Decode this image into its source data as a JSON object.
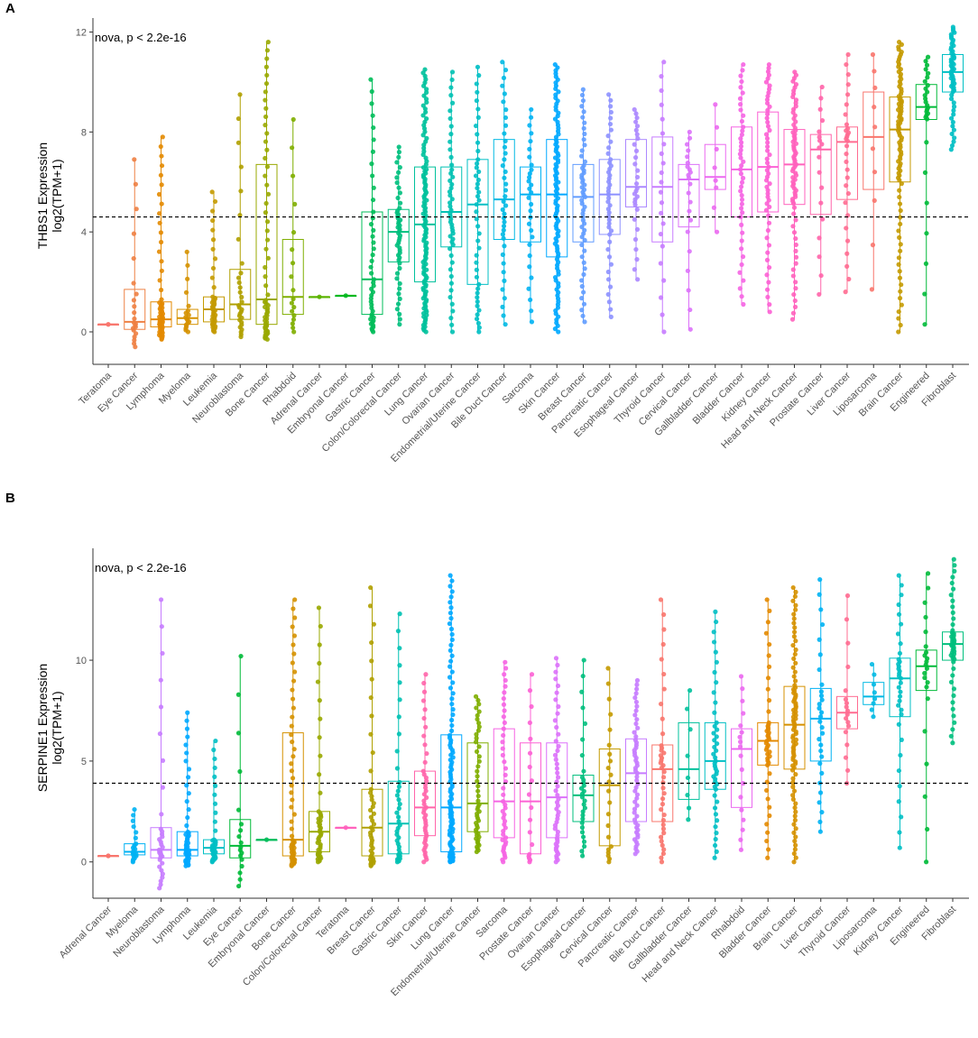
{
  "figure": {
    "panel_a_letter": "A",
    "panel_b_letter": "B"
  },
  "chart_data": [
    {
      "type": "box",
      "panel": "A",
      "annotation": "nova, p < 2.2e-16",
      "ylabel_line1": "THBS1 Expression",
      "ylabel_line2": "log2(TPM+1)",
      "yticks": [
        0,
        4,
        8,
        12
      ],
      "ylim": [
        -1.3,
        12.2
      ],
      "reference_line": 4.6,
      "grid": false,
      "categories": [
        "Teratoma",
        "Eye Cancer",
        "Lymphoma",
        "Myeloma",
        "Leukemia",
        "Neuroblastoma",
        "Bone Cancer",
        "Rhabdoid",
        "Adrenal Cancer",
        "Embryonal Cancer",
        "Gastric Cancer",
        "Colon/Colorectal Cancer",
        "Lung Cancer",
        "Ovarian Cancer",
        "Endometrial/Uterine Cancer",
        "Bile Duct Cancer",
        "Sarcoma",
        "Skin Cancer",
        "Breast Cancer",
        "Pancreatic Cancer",
        "Esophageal Cancer",
        "Thyroid Cancer",
        "Cervical Cancer",
        "Gallbladder Cancer",
        "Bladder Cancer",
        "Kidney Cancer",
        "Head and Neck Cancer",
        "Prostate Cancer",
        "Liver Cancer",
        "Liposarcoma",
        "Brain Cancer",
        "Engineered",
        "Fibroblast"
      ],
      "colors": [
        "#F8766D",
        "#EE8043",
        "#E38900",
        "#D59100",
        "#C49A00",
        "#B0A000",
        "#99A800",
        "#7FAE00",
        "#5BB300",
        "#00B81F",
        "#00BC59",
        "#00BF7D",
        "#00C19C",
        "#00C1B3",
        "#00BFC4",
        "#00B9E3",
        "#00B2F3",
        "#00A8FF",
        "#619CFF",
        "#8D91FF",
        "#AC88FF",
        "#C77CFF",
        "#DC71FA",
        "#EB69F0",
        "#F564E3",
        "#FC61D4",
        "#FF62BC",
        "#FF65AA",
        "#FF6C91",
        "#F8766D",
        "#C49A00",
        "#00BA38",
        "#00BFC4"
      ],
      "stats": [
        {
          "min": 0.3,
          "q1": 0.3,
          "median": 0.3,
          "q3": 0.3,
          "max": 0.3,
          "n": 2
        },
        {
          "min": -0.6,
          "q1": 0.1,
          "median": 0.4,
          "q3": 1.7,
          "max": 6.9,
          "n": 22
        },
        {
          "min": -0.3,
          "q1": 0.2,
          "median": 0.5,
          "q3": 1.2,
          "max": 7.8,
          "n": 70
        },
        {
          "min": 0.0,
          "q1": 0.3,
          "median": 0.55,
          "q3": 0.9,
          "max": 3.2,
          "n": 18
        },
        {
          "min": 0.0,
          "q1": 0.4,
          "median": 0.9,
          "q3": 1.4,
          "max": 5.6,
          "n": 45
        },
        {
          "min": -0.2,
          "q1": 0.5,
          "median": 1.1,
          "q3": 2.5,
          "max": 9.5,
          "n": 30
        },
        {
          "min": -0.3,
          "q1": 0.3,
          "median": 1.3,
          "q3": 6.7,
          "max": 11.6,
          "n": 60
        },
        {
          "min": 0.0,
          "q1": 0.7,
          "median": 1.4,
          "q3": 3.7,
          "max": 8.5,
          "n": 18
        },
        {
          "min": 1.4,
          "q1": 1.4,
          "median": 1.4,
          "q3": 1.4,
          "max": 1.4,
          "n": 1
        },
        {
          "min": 1.45,
          "q1": 1.45,
          "median": 1.45,
          "q3": 1.45,
          "max": 1.45,
          "n": 1
        },
        {
          "min": 0.0,
          "q1": 0.7,
          "median": 2.1,
          "q3": 4.8,
          "max": 10.1,
          "n": 45
        },
        {
          "min": 0.3,
          "q1": 2.8,
          "median": 4.0,
          "q3": 4.9,
          "max": 7.4,
          "n": 50
        },
        {
          "min": 0.0,
          "q1": 2.0,
          "median": 4.3,
          "q3": 6.6,
          "max": 10.5,
          "n": 120
        },
        {
          "min": 0.0,
          "q1": 3.4,
          "median": 4.8,
          "q3": 6.6,
          "max": 10.4,
          "n": 50
        },
        {
          "min": 0.0,
          "q1": 1.9,
          "median": 5.1,
          "q3": 6.9,
          "max": 10.6,
          "n": 45
        },
        {
          "min": 0.3,
          "q1": 3.7,
          "median": 5.3,
          "q3": 7.7,
          "max": 10.8,
          "n": 40
        },
        {
          "min": 0.4,
          "q1": 3.6,
          "median": 5.5,
          "q3": 6.6,
          "max": 8.9,
          "n": 30
        },
        {
          "min": 0.0,
          "q1": 3.0,
          "median": 5.5,
          "q3": 7.7,
          "max": 10.7,
          "n": 100
        },
        {
          "min": 0.4,
          "q1": 3.6,
          "median": 5.4,
          "q3": 6.7,
          "max": 9.7,
          "n": 55
        },
        {
          "min": 0.6,
          "q1": 3.9,
          "median": 5.5,
          "q3": 6.9,
          "max": 9.5,
          "n": 45
        },
        {
          "min": 2.1,
          "q1": 5.0,
          "median": 5.8,
          "q3": 7.7,
          "max": 8.9,
          "n": 30
        },
        {
          "min": 0.0,
          "q1": 3.6,
          "median": 5.8,
          "q3": 7.8,
          "max": 10.8,
          "n": 22
        },
        {
          "min": 0.1,
          "q1": 4.2,
          "median": 6.1,
          "q3": 6.7,
          "max": 8.0,
          "n": 22
        },
        {
          "min": 4.0,
          "q1": 5.7,
          "median": 6.2,
          "q3": 7.5,
          "max": 9.1,
          "n": 8
        },
        {
          "min": 1.1,
          "q1": 4.6,
          "median": 6.5,
          "q3": 8.2,
          "max": 10.7,
          "n": 45
        },
        {
          "min": 0.8,
          "q1": 4.8,
          "median": 6.6,
          "q3": 8.8,
          "max": 10.7,
          "n": 55
        },
        {
          "min": 0.5,
          "q1": 5.1,
          "median": 6.7,
          "q3": 8.1,
          "max": 10.4,
          "n": 75
        },
        {
          "min": 1.5,
          "q1": 4.7,
          "median": 7.3,
          "q3": 7.9,
          "max": 9.8,
          "n": 18
        },
        {
          "min": 1.6,
          "q1": 5.3,
          "median": 7.6,
          "q3": 8.2,
          "max": 11.1,
          "n": 30
        },
        {
          "min": 1.7,
          "q1": 5.7,
          "median": 7.8,
          "q3": 9.6,
          "max": 11.1,
          "n": 10
        },
        {
          "min": 0.0,
          "q1": 6.0,
          "median": 8.1,
          "q3": 9.4,
          "max": 11.6,
          "n": 90
        },
        {
          "min": 0.3,
          "q1": 8.5,
          "median": 9.0,
          "q3": 9.9,
          "max": 11.0,
          "n": 28
        },
        {
          "min": 7.3,
          "q1": 9.6,
          "median": 10.4,
          "q3": 11.1,
          "max": 12.2,
          "n": 60
        }
      ]
    },
    {
      "type": "box",
      "panel": "B",
      "annotation": "nova, p < 2.2e-16",
      "ylabel_line1": "SERPINE1 Expression",
      "ylabel_line2": "log2(TPM+1)",
      "yticks": [
        0,
        5,
        10
      ],
      "ylim": [
        -1.8,
        15.1
      ],
      "reference_line": 3.9,
      "grid": false,
      "categories": [
        "Adrenal Cancer",
        "Myeloma",
        "Neuroblastoma",
        "Lymphoma",
        "Leukemia",
        "Eye Cancer",
        "Embryonal Cancer",
        "Bone Cancer",
        "Colon/Colorectal Cancer",
        "Teratoma",
        "Breast Cancer",
        "Gastric Cancer",
        "Skin Cancer",
        "Lung Cancer",
        "Endometrial/Uterine Cancer",
        "Sarcoma",
        "Prostate Cancer",
        "Ovarian Cancer",
        "Esophageal Cancer",
        "Cervical Cancer",
        "Pancreatic Cancer",
        "Bile Duct Cancer",
        "Gallbladder Cancer",
        "Head and Neck Cancer",
        "Rhabdoid",
        "Bladder Cancer",
        "Brain Cancer",
        "Liver Cancer",
        "Thyroid Cancer",
        "Liposarcoma",
        "Kidney Cancer",
        "Engineered",
        "Fibroblast"
      ],
      "colors": [
        "#F8766D",
        "#00B2F3",
        "#C77CFF",
        "#00A8FF",
        "#00BFC4",
        "#00BA38",
        "#00BC59",
        "#D59100",
        "#99A800",
        "#FF62BC",
        "#B0A000",
        "#00C1B3",
        "#FF65AA",
        "#00A8FF",
        "#7FAE00",
        "#F564E3",
        "#FC61D4",
        "#DC71FA",
        "#00BF7D",
        "#C49A00",
        "#C77CFF",
        "#F8766D",
        "#00C19C",
        "#00BFC4",
        "#EB69F0",
        "#E38900",
        "#D59100",
        "#00B2F3",
        "#FF6C91",
        "#00B9E3",
        "#00BFC4",
        "#00BA38",
        "#00BF7D"
      ],
      "stats": [
        {
          "min": 0.3,
          "q1": 0.3,
          "median": 0.3,
          "q3": 0.3,
          "max": 0.3,
          "n": 2
        },
        {
          "min": 0.0,
          "q1": 0.35,
          "median": 0.5,
          "q3": 0.9,
          "max": 2.6,
          "n": 25
        },
        {
          "min": -1.3,
          "q1": 0.2,
          "median": 0.6,
          "q3": 1.7,
          "max": 13.0,
          "n": 35
        },
        {
          "min": -0.2,
          "q1": 0.3,
          "median": 0.6,
          "q3": 1.5,
          "max": 7.4,
          "n": 60
        },
        {
          "min": 0.0,
          "q1": 0.4,
          "median": 0.7,
          "q3": 1.1,
          "max": 6.0,
          "n": 45
        },
        {
          "min": -1.2,
          "q1": 0.2,
          "median": 0.8,
          "q3": 2.1,
          "max": 10.2,
          "n": 18
        },
        {
          "min": 1.1,
          "q1": 1.1,
          "median": 1.1,
          "q3": 1.1,
          "max": 1.1,
          "n": 1
        },
        {
          "min": -0.2,
          "q1": 0.3,
          "median": 1.1,
          "q3": 6.4,
          "max": 13.0,
          "n": 60
        },
        {
          "min": 0.0,
          "q1": 0.5,
          "median": 1.5,
          "q3": 2.5,
          "max": 12.6,
          "n": 45
        },
        {
          "min": 1.7,
          "q1": 1.7,
          "median": 1.7,
          "q3": 1.7,
          "max": 1.7,
          "n": 1
        },
        {
          "min": -0.2,
          "q1": 0.3,
          "median": 1.7,
          "q3": 3.6,
          "max": 13.6,
          "n": 45
        },
        {
          "min": 0.0,
          "q1": 0.4,
          "median": 1.9,
          "q3": 4.0,
          "max": 12.3,
          "n": 40
        },
        {
          "min": 0.0,
          "q1": 1.3,
          "median": 2.7,
          "q3": 4.5,
          "max": 9.3,
          "n": 45
        },
        {
          "min": 0.0,
          "q1": 0.5,
          "median": 2.7,
          "q3": 6.3,
          "max": 14.2,
          "n": 120
        },
        {
          "min": 0.5,
          "q1": 1.5,
          "median": 2.9,
          "q3": 5.9,
          "max": 8.2,
          "n": 50
        },
        {
          "min": 0.0,
          "q1": 1.2,
          "median": 3.0,
          "q3": 6.6,
          "max": 9.9,
          "n": 45
        },
        {
          "min": 0.0,
          "q1": 0.4,
          "median": 3.0,
          "q3": 5.9,
          "max": 9.3,
          "n": 18
        },
        {
          "min": 0.0,
          "q1": 1.2,
          "median": 3.2,
          "q3": 5.9,
          "max": 10.1,
          "n": 50
        },
        {
          "min": 0.3,
          "q1": 2.0,
          "median": 3.3,
          "q3": 4.3,
          "max": 10.0,
          "n": 30
        },
        {
          "min": 0.0,
          "q1": 0.8,
          "median": 3.8,
          "q3": 5.6,
          "max": 9.6,
          "n": 22
        },
        {
          "min": 0.4,
          "q1": 2.0,
          "median": 4.4,
          "q3": 6.1,
          "max": 9.0,
          "n": 55
        },
        {
          "min": 0.0,
          "q1": 2.0,
          "median": 4.6,
          "q3": 5.8,
          "max": 13.0,
          "n": 40
        },
        {
          "min": 2.1,
          "q1": 3.1,
          "median": 4.6,
          "q3": 6.9,
          "max": 8.5,
          "n": 8
        },
        {
          "min": 0.2,
          "q1": 3.6,
          "median": 5.0,
          "q3": 6.9,
          "max": 12.4,
          "n": 45
        },
        {
          "min": 0.6,
          "q1": 2.7,
          "median": 5.6,
          "q3": 6.6,
          "max": 9.2,
          "n": 18
        },
        {
          "min": 0.2,
          "q1": 4.8,
          "median": 6.0,
          "q3": 6.9,
          "max": 13.0,
          "n": 45
        },
        {
          "min": 0.0,
          "q1": 4.6,
          "median": 6.8,
          "q3": 8.7,
          "max": 13.6,
          "n": 90
        },
        {
          "min": 1.5,
          "q1": 5.0,
          "median": 7.1,
          "q3": 8.6,
          "max": 14.0,
          "n": 30
        },
        {
          "min": 3.9,
          "q1": 6.6,
          "median": 7.4,
          "q3": 8.2,
          "max": 13.2,
          "n": 18
        },
        {
          "min": 7.2,
          "q1": 7.8,
          "median": 8.2,
          "q3": 8.9,
          "max": 9.8,
          "n": 8
        },
        {
          "min": 0.7,
          "q1": 7.2,
          "median": 9.1,
          "q3": 10.1,
          "max": 14.2,
          "n": 35
        },
        {
          "min": 0.0,
          "q1": 8.5,
          "median": 9.7,
          "q3": 10.5,
          "max": 14.3,
          "n": 22
        },
        {
          "min": 5.9,
          "q1": 10.0,
          "median": 10.8,
          "q3": 11.4,
          "max": 15.0,
          "n": 50
        }
      ]
    }
  ]
}
